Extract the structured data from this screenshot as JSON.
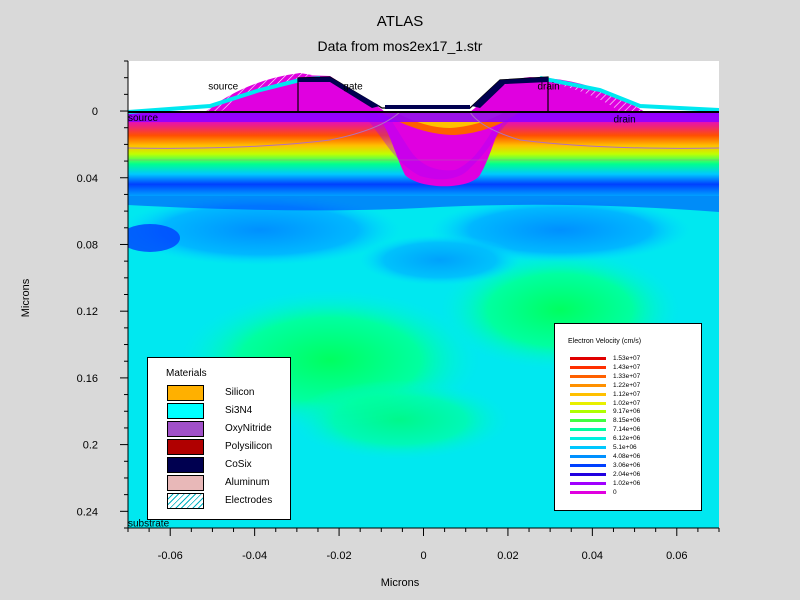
{
  "header": {
    "title": "ATLAS",
    "subtitle": "Data from mos2ex17_1.str"
  },
  "chart_data": {
    "type": "heatmap",
    "title": "ATLAS",
    "subtitle": "Data from mos2ex17_1.str",
    "xlabel": "Microns",
    "ylabel": "Microns",
    "xlim": [
      -0.07,
      0.07
    ],
    "ylim": [
      0.25,
      -0.03
    ],
    "x_ticks": [
      "-0.06",
      "-0.04",
      "-0.02",
      "0",
      "0.02",
      "0.04",
      "0.06"
    ],
    "x_tick_values": [
      -0.06,
      -0.04,
      -0.02,
      0,
      0.02,
      0.04,
      0.06
    ],
    "y_ticks": [
      "0",
      "0.04",
      "0.08",
      "0.12",
      "0.16",
      "0.2",
      "0.24"
    ],
    "y_tick_values": [
      0,
      0.04,
      0.08,
      0.12,
      0.16,
      0.2,
      0.24
    ],
    "region_labels": [
      {
        "text": "source",
        "x": -0.051,
        "y": -0.013
      },
      {
        "text": "gate",
        "x": -0.019,
        "y": -0.013
      },
      {
        "text": "drain",
        "x": 0.027,
        "y": -0.013
      },
      {
        "text": "source",
        "x": -0.07,
        "y": 0.006
      },
      {
        "text": "drain",
        "x": 0.045,
        "y": 0.007
      },
      {
        "text": "substrate",
        "x": -0.07,
        "y": 0.249
      }
    ],
    "materials_legend": {
      "title": "Materials",
      "items": [
        {
          "name": "Silicon",
          "color": "#ffb000"
        },
        {
          "name": "Si3N4",
          "color": "#00ffff"
        },
        {
          "name": "OxyNitride",
          "color": "#a050c8"
        },
        {
          "name": "Polysilicon",
          "color": "#b00000"
        },
        {
          "name": "CoSix",
          "color": "#000050"
        },
        {
          "name": "Aluminum",
          "color": "#e8b8b8"
        },
        {
          "name": "Electrodes",
          "color": "#ffffff",
          "pattern": "hatch"
        }
      ]
    },
    "colorbar": {
      "title": "Electron Velocity (cm/s)",
      "levels": [
        "1.53e+07",
        "1.43e+07",
        "1.33e+07",
        "1.22e+07",
        "1.12e+07",
        "1.02e+07",
        "9.17e+06",
        "8.15e+06",
        "7.14e+06",
        "6.12e+06",
        "5.1e+06",
        "4.08e+06",
        "3.06e+06",
        "2.04e+06",
        "1.02e+06",
        "0"
      ],
      "colors": [
        "#e00000",
        "#ff3000",
        "#ff6000",
        "#ff9000",
        "#ffc000",
        "#e8f000",
        "#b0ff00",
        "#40ff40",
        "#00ffa0",
        "#00f0e0",
        "#00c8ff",
        "#0090ff",
        "#0040ff",
        "#2000e0",
        "#a000ff",
        "#e000e0"
      ]
    }
  }
}
